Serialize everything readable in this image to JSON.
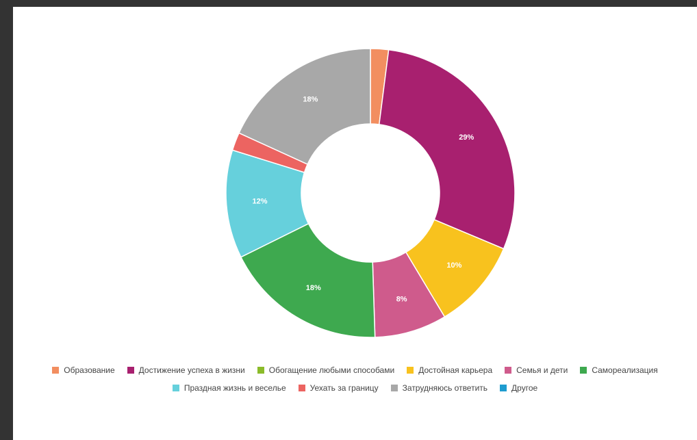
{
  "chart_data": {
    "type": "pie",
    "donut": true,
    "legend_position": "bottom",
    "slices": [
      {
        "label": "Образование",
        "value": 2,
        "display": "",
        "color": "#f28e60"
      },
      {
        "label": "Достижение успеха в жизни",
        "value": 29,
        "display": "29%",
        "color": "#a8206f"
      },
      {
        "label": "Обогащение любыми способами",
        "value": 0,
        "display": "",
        "color": "#8bbb2a"
      },
      {
        "label": "Достойная карьера",
        "value": 10,
        "display": "10%",
        "color": "#f8c21e"
      },
      {
        "label": "Семья и дети",
        "value": 8,
        "display": "8%",
        "color": "#cf5b8c"
      },
      {
        "label": "Самореализация",
        "value": 18,
        "display": "18%",
        "color": "#3ea94f"
      },
      {
        "label": "Праздная жизнь и веселье",
        "value": 12,
        "display": "12%",
        "color": "#66d0dc"
      },
      {
        "label": "Уехать за границу",
        "value": 2,
        "display": "",
        "color": "#ec6461"
      },
      {
        "label": "Затрудняюсь ответить",
        "value": 18,
        "display": "18%",
        "color": "#a8a8a8"
      },
      {
        "label": "Другое",
        "value": 0,
        "display": "",
        "color": "#1e9ccf"
      }
    ]
  }
}
